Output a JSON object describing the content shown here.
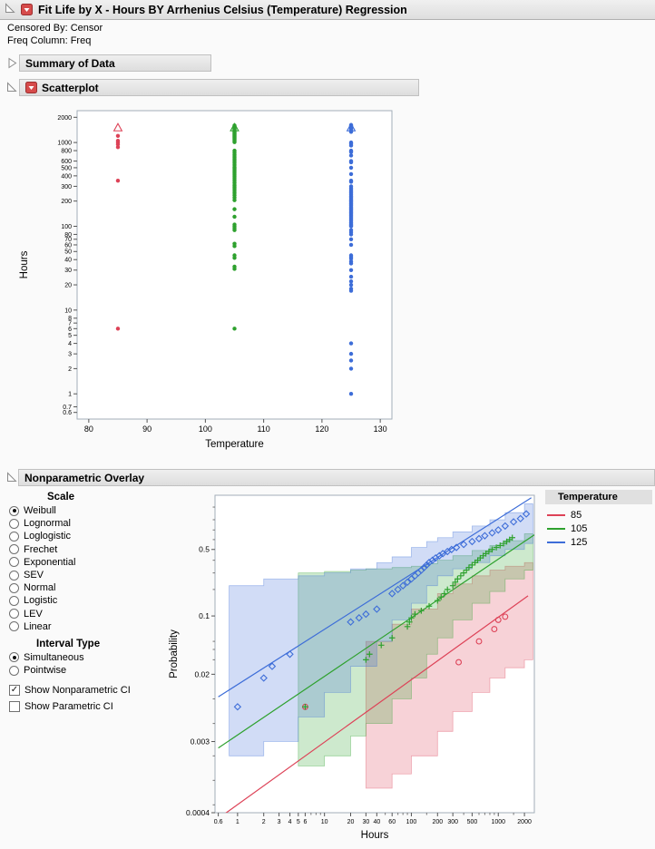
{
  "header": {
    "title": "Fit Life by X - Hours BY Arrhenius Celsius (Temperature) Regression",
    "censored_by": "Censored By: Censor",
    "freq_column": "Freq Column: Freq"
  },
  "outlines": {
    "summary": {
      "title": "Summary of Data",
      "collapsed": true
    },
    "scatterplot": {
      "title": "Scatterplot",
      "collapsed": false
    },
    "overlay": {
      "title": "Nonparametric Overlay",
      "collapsed": false
    }
  },
  "controls": {
    "scale": {
      "label": "Scale",
      "options": [
        "Weibull",
        "Lognormal",
        "Loglogistic",
        "Frechet",
        "Exponential",
        "SEV",
        "Normal",
        "Logistic",
        "LEV",
        "Linear"
      ],
      "selected": "Weibull"
    },
    "interval": {
      "label": "Interval Type",
      "options": [
        "Simultaneous",
        "Pointwise"
      ],
      "selected": "Simultaneous"
    },
    "checkboxes": [
      {
        "label": "Show Nonparametric CI",
        "checked": true
      },
      {
        "label": "Show Parametric CI",
        "checked": false
      }
    ]
  },
  "legend": {
    "title": "Temperature",
    "entries": [
      {
        "label": "85",
        "color": "#dd4257"
      },
      {
        "label": "105",
        "color": "#2ea12e"
      },
      {
        "label": "125",
        "color": "#3d6dd8"
      }
    ]
  },
  "chart_data": [
    {
      "id": "scatterplot",
      "type": "scatter",
      "xlabel": "Temperature",
      "ylabel": "Hours",
      "xscale": "lin",
      "yscale": "log",
      "xlim": [
        78,
        132
      ],
      "ylim": [
        0.5,
        2400
      ],
      "xticks": [
        80,
        90,
        100,
        110,
        120,
        130
      ],
      "yticks": [
        2000,
        1000,
        800,
        600,
        500,
        400,
        300,
        200,
        100,
        80,
        70,
        60,
        50,
        40,
        30,
        20,
        10,
        8,
        7,
        6,
        5,
        4,
        3,
        2,
        1,
        0.7,
        0.6
      ],
      "series": [
        {
          "name": "85",
          "color": "#dd4257",
          "marker": "circle",
          "x": 85,
          "hours": [
            1200,
            1050,
            1000,
            950,
            880,
            350,
            6
          ]
        },
        {
          "name": "105",
          "color": "#2ea12e",
          "marker": "circle",
          "x": 105,
          "hours": [
            1600,
            1560,
            1520,
            1490,
            1460,
            1430,
            1400,
            1370,
            1340,
            1310,
            1280,
            1250,
            1220,
            1190,
            1160,
            1130,
            1100,
            1070,
            1040,
            1010,
            800,
            760,
            720,
            690,
            660,
            630,
            600,
            570,
            540,
            510,
            490,
            470,
            450,
            430,
            410,
            390,
            370,
            350,
            330,
            310,
            295,
            280,
            265,
            250,
            235,
            220,
            205,
            160,
            130,
            105,
            100,
            95,
            90,
            62,
            58,
            45,
            42,
            33,
            31,
            6
          ]
        },
        {
          "name": "125",
          "color": "#3d6dd8",
          "marker": "circle",
          "x": 125,
          "hours": [
            1620,
            1585,
            1550,
            1515,
            1480,
            1445,
            1410,
            1375,
            1340,
            1000,
            960,
            920,
            800,
            770,
            700,
            600,
            580,
            500,
            420,
            350,
            340,
            300,
            285,
            272,
            260,
            250,
            240,
            230,
            222,
            214,
            206,
            200,
            194,
            188,
            182,
            176,
            170,
            165,
            160,
            155,
            150,
            145,
            140,
            135,
            130,
            125,
            120,
            115,
            110,
            106,
            102,
            100,
            90,
            85,
            80,
            70,
            60,
            45,
            43,
            41,
            38,
            36,
            30,
            25,
            22,
            20,
            18,
            17,
            4,
            3,
            2.5,
            2,
            1
          ]
        },
        {
          "name": "85-censored",
          "color": "#dd4257",
          "marker": "triangle-open",
          "x": 85,
          "hours": [
            1500
          ]
        },
        {
          "name": "105-censored",
          "color": "#2ea12e",
          "marker": "triangle-open",
          "x": 105,
          "hours": [
            1500
          ]
        },
        {
          "name": "125-censored",
          "color": "#3d6dd8",
          "marker": "triangle-open",
          "x": 125,
          "hours": [
            1500
          ]
        }
      ]
    },
    {
      "id": "probplot",
      "type": "line",
      "scale": "Weibull",
      "xlabel": "Hours",
      "ylabel": "Probability",
      "xscale": "log",
      "yscale": "weibull",
      "xlim": [
        0.55,
        2600
      ],
      "ylim": [
        0.0004,
        0.96
      ],
      "xticks": [
        0.6,
        1,
        2,
        3,
        4,
        5,
        6,
        10,
        20,
        30,
        40,
        60,
        100,
        200,
        300,
        500,
        1000,
        2000
      ],
      "xminor": [
        7,
        8,
        9,
        50,
        70,
        80,
        90,
        150,
        400,
        600,
        700,
        800,
        900,
        1500
      ],
      "yticks": [
        0.5,
        0.1,
        0.02,
        0.003,
        0.0004
      ],
      "yminor": [
        0.9,
        0.8,
        0.7,
        0.6,
        0.4,
        0.3,
        0.2,
        0.05,
        0.04,
        0.03,
        0.01,
        0.005,
        0.002,
        0.001,
        0.0005
      ],
      "series": [
        {
          "name": "85",
          "color": "#dd4257",
          "marker": "circle-open",
          "points": [
            [
              6,
              0.008
            ],
            [
              350,
              0.028
            ],
            [
              600,
              0.05
            ],
            [
              900,
              0.07
            ],
            [
              1000,
              0.09
            ],
            [
              1200,
              0.098
            ]
          ],
          "line": [
            [
              0.6,
              0.00034
            ],
            [
              2200,
              0.17
            ]
          ],
          "band": [
            [
              30,
              0.0008,
              0.05
            ],
            [
              60,
              0.0012,
              0.08
            ],
            [
              100,
              0.002,
              0.12
            ],
            [
              200,
              0.004,
              0.18
            ],
            [
              300,
              0.007,
              0.23
            ],
            [
              500,
              0.012,
              0.28
            ],
            [
              800,
              0.018,
              0.32
            ],
            [
              1200,
              0.024,
              0.35
            ],
            [
              2000,
              0.03,
              0.38
            ],
            [
              2500,
              0.03,
              0.38
            ]
          ]
        },
        {
          "name": "105",
          "color": "#2ea12e",
          "marker": "plus",
          "points": [
            [
              6,
              0.008
            ],
            [
              30,
              0.03
            ],
            [
              33,
              0.035
            ],
            [
              45,
              0.045
            ],
            [
              60,
              0.055
            ],
            [
              90,
              0.075
            ],
            [
              95,
              0.085
            ],
            [
              100,
              0.095
            ],
            [
              110,
              0.105
            ],
            [
              130,
              0.115
            ],
            [
              160,
              0.13
            ],
            [
              200,
              0.15
            ],
            [
              220,
              0.165
            ],
            [
              240,
              0.18
            ],
            [
              260,
              0.2
            ],
            [
              300,
              0.22
            ],
            [
              320,
              0.24
            ],
            [
              340,
              0.26
            ],
            [
              370,
              0.28
            ],
            [
              400,
              0.3
            ],
            [
              430,
              0.32
            ],
            [
              460,
              0.34
            ],
            [
              500,
              0.36
            ],
            [
              540,
              0.38
            ],
            [
              580,
              0.4
            ],
            [
              620,
              0.42
            ],
            [
              670,
              0.44
            ],
            [
              720,
              0.46
            ],
            [
              780,
              0.48
            ],
            [
              850,
              0.5
            ],
            [
              950,
              0.52
            ],
            [
              1050,
              0.54
            ],
            [
              1150,
              0.56
            ],
            [
              1250,
              0.58
            ],
            [
              1350,
              0.6
            ],
            [
              1450,
              0.62
            ]
          ],
          "line": [
            [
              0.6,
              0.0025
            ],
            [
              2600,
              0.65
            ]
          ],
          "band": [
            [
              5,
              0.0015,
              0.3
            ],
            [
              10,
              0.002,
              0.31
            ],
            [
              20,
              0.0035,
              0.32
            ],
            [
              30,
              0.005,
              0.33
            ],
            [
              60,
              0.01,
              0.34
            ],
            [
              100,
              0.018,
              0.35
            ],
            [
              150,
              0.035,
              0.37
            ],
            [
              200,
              0.055,
              0.4
            ],
            [
              300,
              0.09,
              0.44
            ],
            [
              500,
              0.14,
              0.49
            ],
            [
              800,
              0.19,
              0.54
            ],
            [
              1200,
              0.26,
              0.59
            ],
            [
              2000,
              0.32,
              0.66
            ],
            [
              2500,
              0.32,
              0.66
            ]
          ]
        },
        {
          "name": "125",
          "color": "#3d6dd8",
          "marker": "diamond-open",
          "points": [
            [
              1,
              0.008
            ],
            [
              2,
              0.018
            ],
            [
              2.5,
              0.025
            ],
            [
              4,
              0.035
            ],
            [
              20,
              0.085
            ],
            [
              25,
              0.095
            ],
            [
              30,
              0.105
            ],
            [
              40,
              0.12
            ],
            [
              60,
              0.18
            ],
            [
              70,
              0.2
            ],
            [
              80,
              0.22
            ],
            [
              90,
              0.24
            ],
            [
              100,
              0.26
            ],
            [
              110,
              0.28
            ],
            [
              120,
              0.3
            ],
            [
              130,
              0.32
            ],
            [
              140,
              0.34
            ],
            [
              150,
              0.36
            ],
            [
              160,
              0.38
            ],
            [
              175,
              0.4
            ],
            [
              190,
              0.42
            ],
            [
              210,
              0.44
            ],
            [
              230,
              0.46
            ],
            [
              260,
              0.48
            ],
            [
              290,
              0.5
            ],
            [
              330,
              0.52
            ],
            [
              400,
              0.55
            ],
            [
              500,
              0.58
            ],
            [
              600,
              0.61
            ],
            [
              700,
              0.64
            ],
            [
              850,
              0.67
            ],
            [
              1000,
              0.7
            ],
            [
              1200,
              0.74
            ],
            [
              1500,
              0.78
            ],
            [
              1800,
              0.81
            ],
            [
              2100,
              0.85
            ]
          ],
          "line": [
            [
              0.6,
              0.0106
            ],
            [
              2400,
              0.95
            ]
          ],
          "band": [
            [
              0.8,
              0.002,
              0.22
            ],
            [
              2,
              0.003,
              0.26
            ],
            [
              5,
              0.006,
              0.28
            ],
            [
              10,
              0.012,
              0.3
            ],
            [
              20,
              0.025,
              0.33
            ],
            [
              40,
              0.05,
              0.38
            ],
            [
              60,
              0.09,
              0.43
            ],
            [
              100,
              0.14,
              0.52
            ],
            [
              150,
              0.22,
              0.58
            ],
            [
              200,
              0.28,
              0.62
            ],
            [
              300,
              0.33,
              0.68
            ],
            [
              500,
              0.38,
              0.74
            ],
            [
              800,
              0.44,
              0.8
            ],
            [
              1200,
              0.5,
              0.86
            ],
            [
              2000,
              0.56,
              0.92
            ],
            [
              2500,
              0.56,
              0.92
            ]
          ]
        }
      ]
    }
  ]
}
